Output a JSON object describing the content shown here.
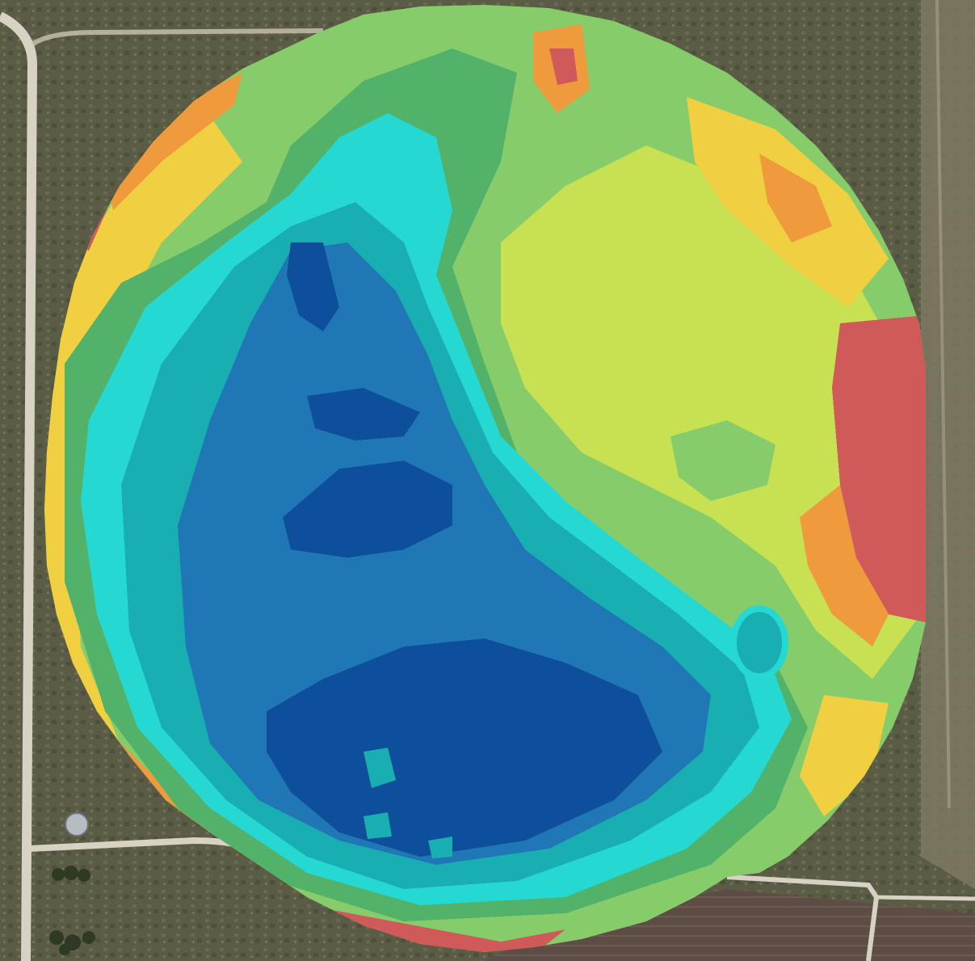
{
  "map": {
    "kind": "aerial-imagery-with-field-heatmap-overlay",
    "legend": null,
    "colors": {
      "ground": "#5b5c45",
      "ground_light": "#7d7a60",
      "road": "#d8d2c4",
      "dark_blue": "#0e4f9b",
      "blue": "#1f78b5",
      "teal": "#19aeb1",
      "cyan": "#26d8d2",
      "green": "#52b26a",
      "light_green": "#86cc6a",
      "yellow_green": "#c8e153",
      "yellow": "#f0d041",
      "orange": "#ef9b3d",
      "red": "#cf5a59",
      "soil_brown": "#5e4d44"
    }
  }
}
